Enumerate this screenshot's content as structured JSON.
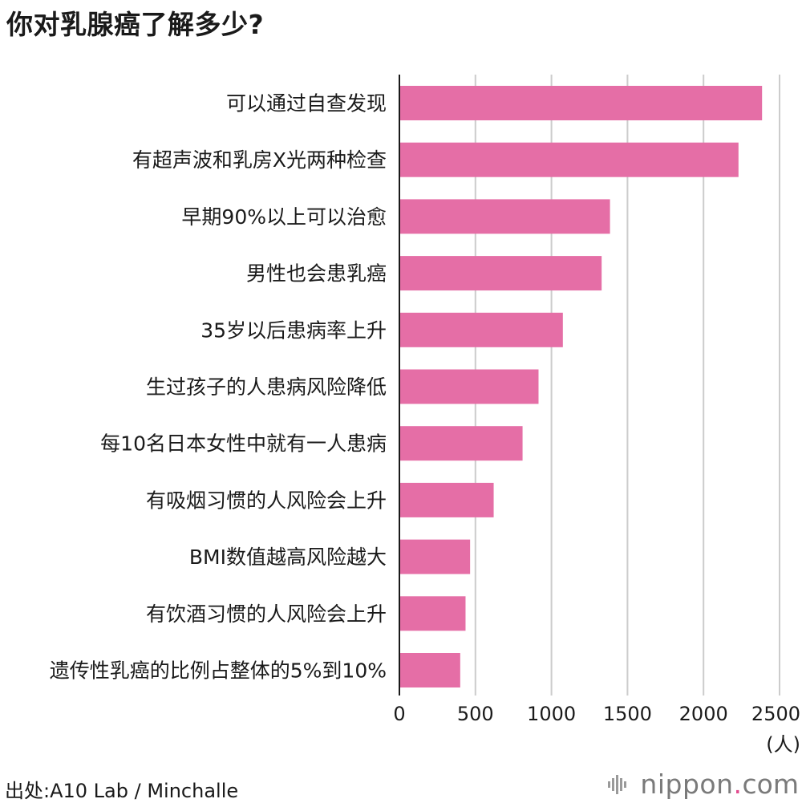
{
  "title": "你对乳腺癌了解多少?",
  "source": "出处:A10 Lab / Minchalle",
  "logo": {
    "name": "nippon",
    "dot": ".",
    "domain": "com"
  },
  "colors": {
    "bar": "#e56ea6",
    "grid": "#cccccc",
    "axis": "#1a1a1a",
    "text": "#1a1a1a"
  },
  "chart_data": {
    "type": "bar",
    "orientation": "horizontal",
    "categories": [
      "可以通过自查发现",
      "有超声波和乳房X光两种检查",
      "早期90%以上可以治愈",
      "男性也会患乳癌",
      "35岁以后患病率上升",
      "生过孩子的人患病风险降低",
      "每10名日本女性中就有一人患病",
      "有吸烟习惯的人风险会上升",
      "BMI数值越高风险越大",
      "有饮酒习惯的人风险会上升",
      "遗传性乳癌的比例占整体的5%到10%"
    ],
    "values": [
      2385,
      2230,
      1385,
      1330,
      1075,
      915,
      810,
      620,
      465,
      435,
      400
    ],
    "xlim": [
      0,
      2500
    ],
    "xticks": [
      "0",
      "500",
      "1000",
      "1500",
      "2000",
      "2500"
    ],
    "xunit": "(人)",
    "grid": true
  }
}
